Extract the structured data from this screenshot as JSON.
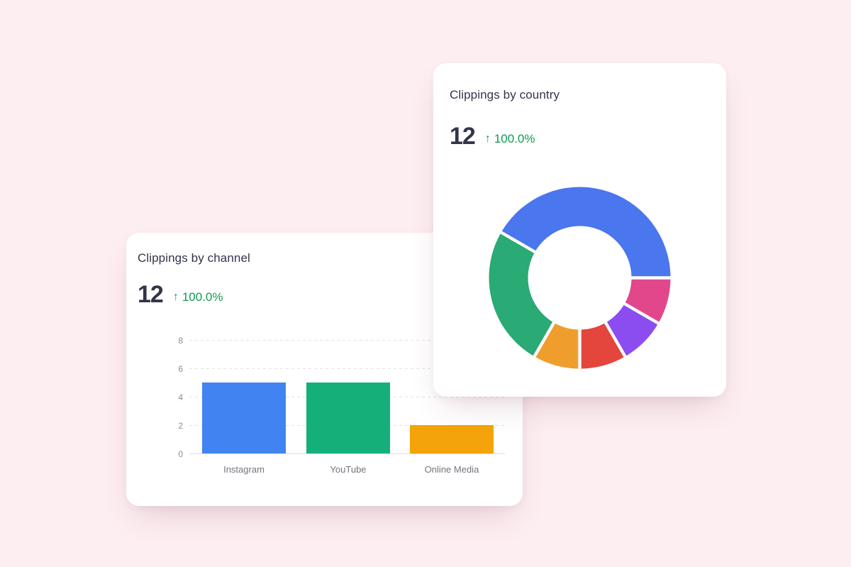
{
  "theme": {
    "background": "#fdeef1",
    "card": "#ffffff",
    "heading": "#32354a",
    "metric": "#32354a",
    "positive": "#0f9b4e",
    "axis_label": "#898e93",
    "category_label": "#70767c"
  },
  "cards": {
    "channel": {
      "title": "Clippings by channel",
      "metric_value": "12",
      "trend_arrow": "↑",
      "trend_value": "100.0%"
    },
    "country": {
      "title": "Clippings by country",
      "metric_value": "12",
      "trend_arrow": "↑",
      "trend_value": "100.0%"
    }
  },
  "chart_data": [
    {
      "id": "clippings-by-channel",
      "type": "bar",
      "title": "Clippings by channel",
      "total": 12,
      "change": "+100.0%",
      "categories": [
        "Instagram",
        "YouTube",
        "Online Media"
      ],
      "values": [
        5,
        5,
        2
      ],
      "colors": [
        "#4184f1",
        "#15b07a",
        "#f5a30b"
      ],
      "xlabel": "",
      "ylabel": "",
      "ylim": [
        0,
        8
      ],
      "yticks": [
        0,
        2,
        4,
        6,
        8
      ],
      "grid": "horizontal-dashed",
      "legend": "none"
    },
    {
      "id": "clippings-by-country",
      "type": "pie",
      "title": "Clippings by country",
      "total": 12,
      "change": "+100.0%",
      "donut": true,
      "start_angle_deg": 90,
      "direction": "clockwise",
      "legend": "none",
      "segments": [
        {
          "value": 1,
          "color": "#e2478c"
        },
        {
          "value": 1,
          "color": "#8b4df0"
        },
        {
          "value": 1,
          "color": "#e4463e"
        },
        {
          "value": 1,
          "color": "#ef9e2d"
        },
        {
          "value": 3,
          "color": "#2aaa74"
        },
        {
          "value": 5,
          "color": "#4a76ee"
        }
      ]
    }
  ]
}
